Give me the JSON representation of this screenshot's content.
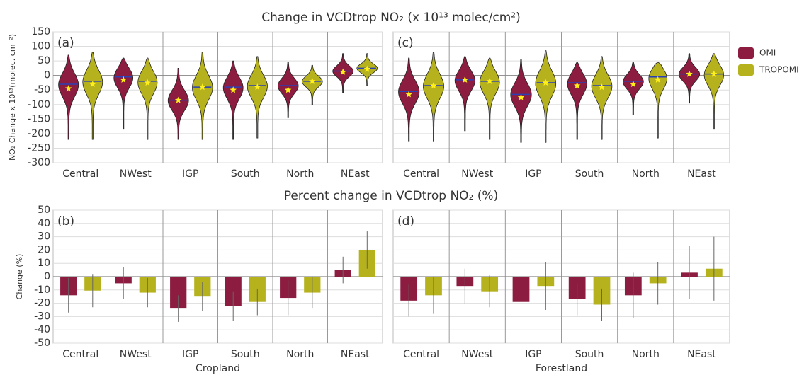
{
  "chart_data": [
    {
      "type": "violin",
      "title": "Change in VCDtrop NO₂ (x 10¹³ molec/cm²)",
      "panel_label": "(a)",
      "ylabel": "NO₂ Change x 10¹³(molec. cm⁻²)",
      "categories": [
        "Central",
        "NWest",
        "IGP",
        "South",
        "North",
        "NEast"
      ],
      "ylim": [
        -300,
        150
      ],
      "yticks": [
        -300,
        -250,
        -200,
        -150,
        -100,
        -50,
        0,
        50,
        100,
        150
      ],
      "ytick_labels": true,
      "grid": true,
      "series": [
        {
          "name": "OMI",
          "color": "#8c1c40",
          "min": [
            -220,
            -185,
            -220,
            -220,
            -145,
            -60
          ],
          "max": [
            70,
            60,
            25,
            50,
            45,
            75
          ],
          "median": [
            -30,
            -5,
            -85,
            -40,
            -35,
            15
          ],
          "mean": [
            -45,
            -15,
            -85,
            -50,
            -50,
            12
          ]
        },
        {
          "name": "TROPOMI",
          "color": "#b5b21e",
          "min": [
            -220,
            -220,
            -220,
            -215,
            -100,
            -35
          ],
          "max": [
            80,
            60,
            80,
            65,
            35,
            75
          ],
          "median": [
            -20,
            -20,
            -40,
            -35,
            -20,
            25
          ],
          "mean": [
            -30,
            -25,
            -40,
            -40,
            -20,
            22
          ]
        }
      ]
    },
    {
      "type": "bar",
      "title": "Percent change in VCDtrop NO₂ (%)",
      "panel_label": "(b)",
      "ylabel": "Change (%)",
      "xlabel": "Cropland",
      "categories": [
        "Central",
        "NWest",
        "IGP",
        "South",
        "North",
        "NEast"
      ],
      "ylim": [
        -50,
        50
      ],
      "yticks": [
        -50,
        -40,
        -30,
        -20,
        -10,
        0,
        10,
        20,
        30,
        40,
        50
      ],
      "ytick_labels": true,
      "grid": true,
      "series": [
        {
          "color": "#8c1c40",
          "values": [
            -14,
            -5,
            -24,
            -22,
            -16,
            5
          ],
          "errors": [
            13,
            12,
            10,
            11,
            13,
            10
          ]
        },
        {
          "color": "#b5b21e",
          "values": [
            -10.5,
            -12,
            -15,
            -19,
            -12,
            20
          ],
          "errors": [
            12.5,
            11,
            11,
            10,
            12,
            14
          ]
        }
      ]
    },
    {
      "type": "violin",
      "panel_label": "(c)",
      "categories": [
        "Central",
        "NWest",
        "IGP",
        "South",
        "North",
        "NEast"
      ],
      "ylim": [
        -300,
        150
      ],
      "yticks": [
        -300,
        -250,
        -200,
        -150,
        -100,
        -50,
        0,
        50,
        100,
        150
      ],
      "ytick_labels": false,
      "grid": true,
      "series": [
        {
          "color": "#8c1c40",
          "min": [
            -225,
            -190,
            -230,
            -220,
            -135,
            -95
          ],
          "max": [
            60,
            65,
            55,
            45,
            45,
            75
          ],
          "median": [
            -55,
            -15,
            -65,
            -25,
            -20,
            5
          ],
          "mean": [
            -65,
            -15,
            -75,
            -35,
            -30,
            5
          ]
        },
        {
          "color": "#b5b21e",
          "min": [
            -225,
            -220,
            -230,
            -220,
            -215,
            -185
          ],
          "max": [
            80,
            60,
            85,
            65,
            45,
            75
          ],
          "median": [
            -35,
            -20,
            -25,
            -35,
            -5,
            5
          ],
          "mean": [
            -35,
            -20,
            -25,
            -40,
            -15,
            5
          ]
        }
      ]
    },
    {
      "type": "bar",
      "panel_label": "(d)",
      "xlabel": "Forestland",
      "categories": [
        "Central",
        "NWest",
        "IGP",
        "South",
        "North",
        "NEast"
      ],
      "ylim": [
        -50,
        50
      ],
      "yticks": [
        -50,
        -40,
        -30,
        -20,
        -10,
        0,
        10,
        20,
        30,
        40,
        50
      ],
      "ytick_labels": false,
      "grid": true,
      "series": [
        {
          "color": "#8c1c40",
          "values": [
            -18,
            -7,
            -19,
            -17,
            -14,
            3
          ],
          "errors": [
            12,
            13,
            11,
            12,
            17,
            20
          ]
        },
        {
          "color": "#b5b21e",
          "values": [
            -14,
            -11,
            -7,
            -21,
            -5,
            6
          ],
          "errors": [
            14,
            12,
            18,
            12,
            16,
            24
          ]
        }
      ]
    }
  ]
}
